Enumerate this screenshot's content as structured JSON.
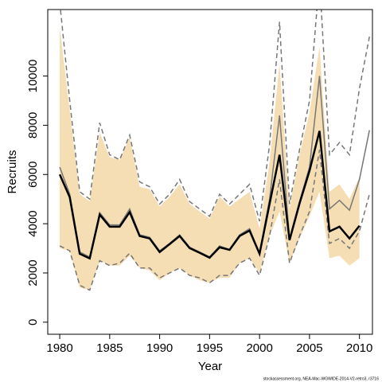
{
  "chart_data": {
    "type": "line",
    "xlabel": "Year",
    "ylabel": "Recruits",
    "footnote": "stockassessment.org, NEA-Mac-WGWIDE-2014-V2-retro3, r3716",
    "x": [
      1980,
      1981,
      1982,
      1983,
      1984,
      1985,
      1986,
      1987,
      1988,
      1989,
      1990,
      1991,
      1992,
      1993,
      1994,
      1995,
      1996,
      1997,
      1998,
      1999,
      2000,
      2001,
      2002,
      2003,
      2004,
      2005,
      2006,
      2007,
      2008,
      2009,
      2010,
      2011
    ],
    "xlim": [
      1978.8,
      2011.3
    ],
    "xticks": [
      1980,
      1985,
      1990,
      1995,
      2000,
      2005,
      2010
    ],
    "ylim": [
      -490,
      12700
    ],
    "yticks": [
      0,
      2000,
      4000,
      6000,
      8000,
      10000
    ],
    "bands": [
      {
        "color": "#f5deb3",
        "upper": [
          12000,
          8600,
          5200,
          4900,
          7700,
          6700,
          6600,
          7500,
          5500,
          5400,
          4700,
          5100,
          5600,
          4800,
          4500,
          4200,
          5100,
          4700,
          5000,
          5300,
          3800,
          6500,
          10500,
          4600,
          6800,
          8500,
          11200,
          5300,
          5600,
          5000,
          5900,
          null
        ],
        "lower": [
          3000,
          2900,
          1400,
          1300,
          2500,
          2300,
          2300,
          2700,
          2200,
          2100,
          1700,
          2000,
          2200,
          1900,
          1700,
          1600,
          1800,
          1800,
          2400,
          2600,
          2000,
          3500,
          4500,
          2400,
          3400,
          4300,
          5300,
          2600,
          2700,
          2300,
          2600,
          null
        ]
      }
    ],
    "series": [
      {
        "color": "#777777",
        "width": 1.5,
        "dashed": true,
        "values": [
          13000,
          9000,
          5300,
          5000,
          8100,
          6800,
          6600,
          7600,
          5700,
          5500,
          4800,
          5200,
          5800,
          4900,
          4600,
          4300,
          5200,
          4800,
          5200,
          5600,
          4100,
          7200,
          12200,
          4800,
          7000,
          9000,
          14000,
          6800,
          7300,
          6800,
          9500,
          11600
        ]
      },
      {
        "color": "#777777",
        "width": 1.5,
        "dashed": true,
        "values": [
          3100,
          2900,
          1500,
          1300,
          2500,
          2300,
          2400,
          2800,
          2200,
          2200,
          1800,
          2000,
          2200,
          1900,
          1800,
          1600,
          1900,
          1900,
          2400,
          2600,
          1900,
          3500,
          5800,
          2400,
          3500,
          4500,
          7000,
          3200,
          3400,
          3000,
          3700,
          5200
        ]
      },
      {
        "color": "#777777",
        "width": 1.5,
        "dashed": false,
        "values": [
          6300,
          5200,
          2850,
          2650,
          4450,
          3950,
          3950,
          4600,
          3550,
          3450,
          2900,
          3200,
          3550,
          3050,
          2850,
          2650,
          3100,
          2950,
          3550,
          3800,
          2800,
          5000,
          8400,
          3400,
          4900,
          6300,
          10000,
          4600,
          4950,
          4550,
          5800,
          7800
        ]
      },
      {
        "color": "#000000",
        "width": 2.5,
        "dashed": false,
        "values": [
          6000,
          5080,
          2780,
          2590,
          4370,
          3880,
          3880,
          4470,
          3500,
          3400,
          2850,
          3170,
          3500,
          3010,
          2820,
          2620,
          3040,
          2940,
          3500,
          3720,
          2780,
          4800,
          6800,
          3330,
          4820,
          6150,
          7770,
          3690,
          3880,
          3400,
          3920,
          null
        ]
      }
    ]
  }
}
